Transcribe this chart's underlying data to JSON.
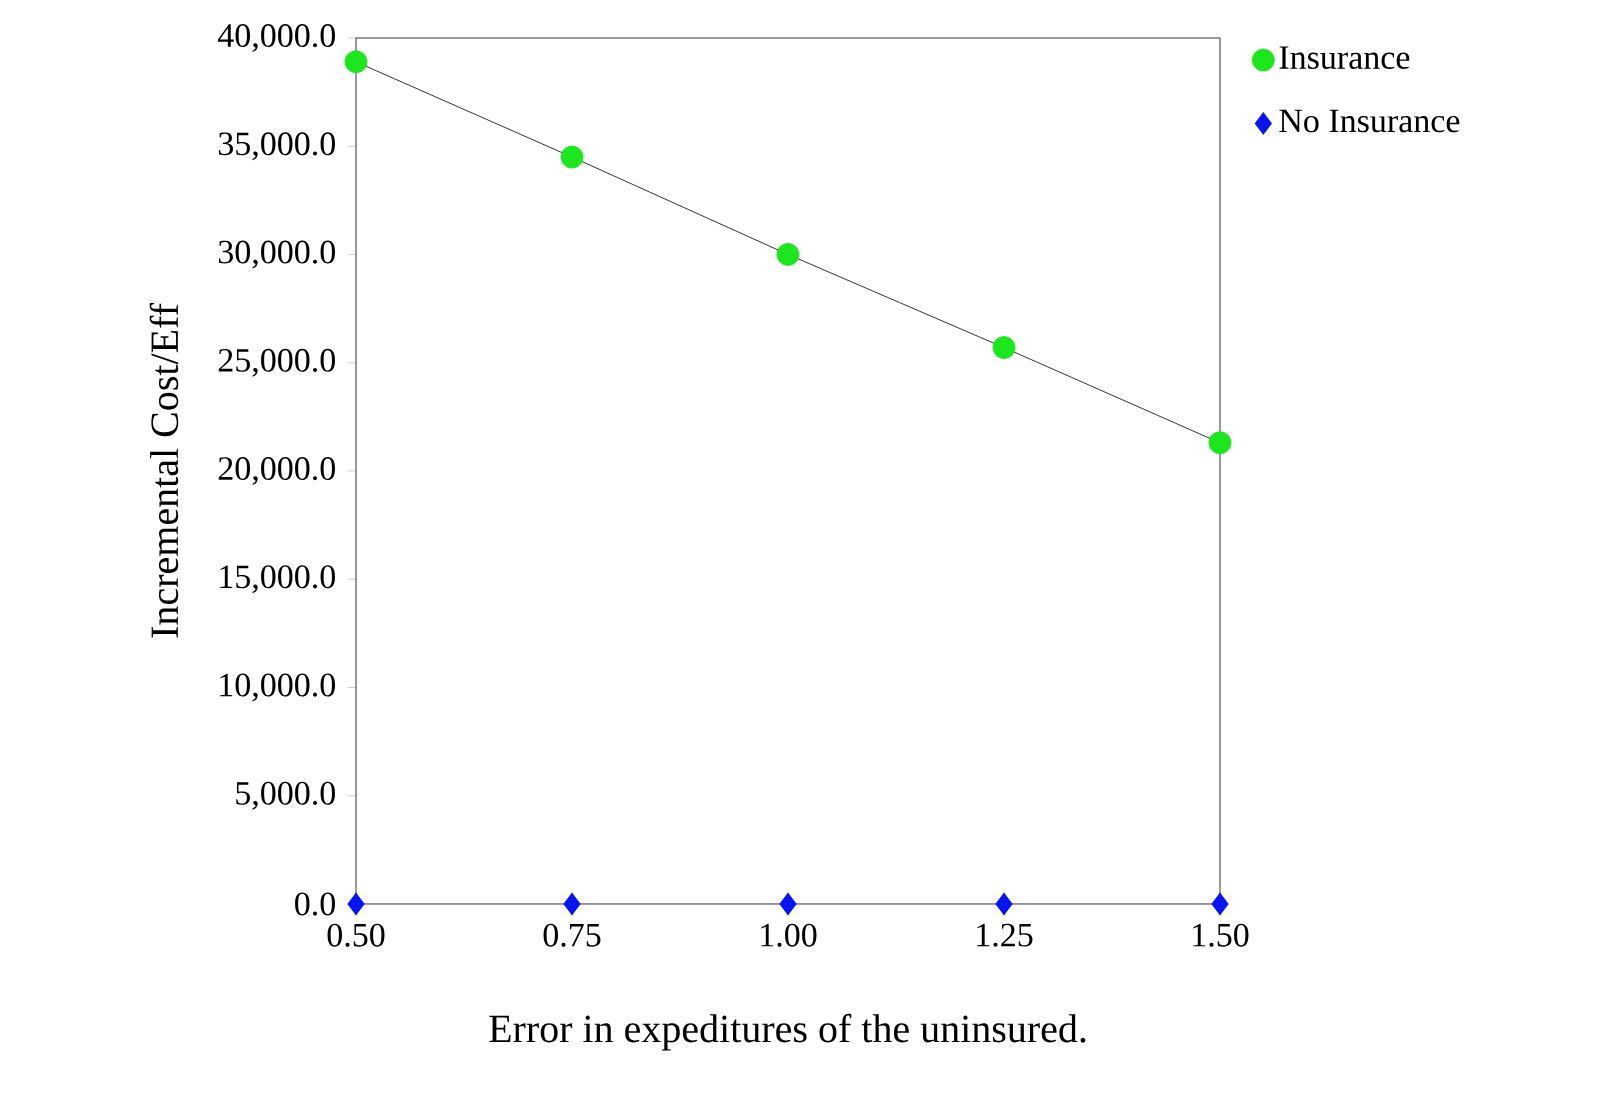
{
  "chart_data": {
    "type": "line",
    "xlabel": "Error in expeditures of the uninsured.",
    "ylabel": "Incremental Cost/Eff",
    "x": [
      0.5,
      0.75,
      1.0,
      1.25,
      1.5
    ],
    "series": [
      {
        "name": "Insurance",
        "color": "#1ee61e",
        "marker": "circle",
        "values": [
          38900,
          34500,
          30000,
          25700,
          21300
        ]
      },
      {
        "name": "No Insurance",
        "color": "#0a14f0",
        "marker": "diamond",
        "type": "scatter",
        "values": [
          0,
          0,
          0,
          0,
          0
        ]
      }
    ],
    "xlim": [
      0.5,
      1.5
    ],
    "ylim": [
      0,
      40000
    ],
    "xticks": [
      {
        "value": 0.5,
        "label": "0.50"
      },
      {
        "value": 0.75,
        "label": "0.75"
      },
      {
        "value": 1.0,
        "label": "1.00"
      },
      {
        "value": 1.25,
        "label": "1.25"
      },
      {
        "value": 1.5,
        "label": "1.50"
      }
    ],
    "yticks": [
      {
        "value": 0,
        "label": "0.0"
      },
      {
        "value": 5000,
        "label": "5,000.0"
      },
      {
        "value": 10000,
        "label": "10,000.0"
      },
      {
        "value": 15000,
        "label": "15,000.0"
      },
      {
        "value": 20000,
        "label": "20,000.0"
      },
      {
        "value": 25000,
        "label": "25,000.0"
      },
      {
        "value": 30000,
        "label": "30,000.0"
      },
      {
        "value": 35000,
        "label": "35,000.0"
      },
      {
        "value": 40000,
        "label": "40,000.0"
      }
    ],
    "legend": "top right",
    "grid": false
  }
}
